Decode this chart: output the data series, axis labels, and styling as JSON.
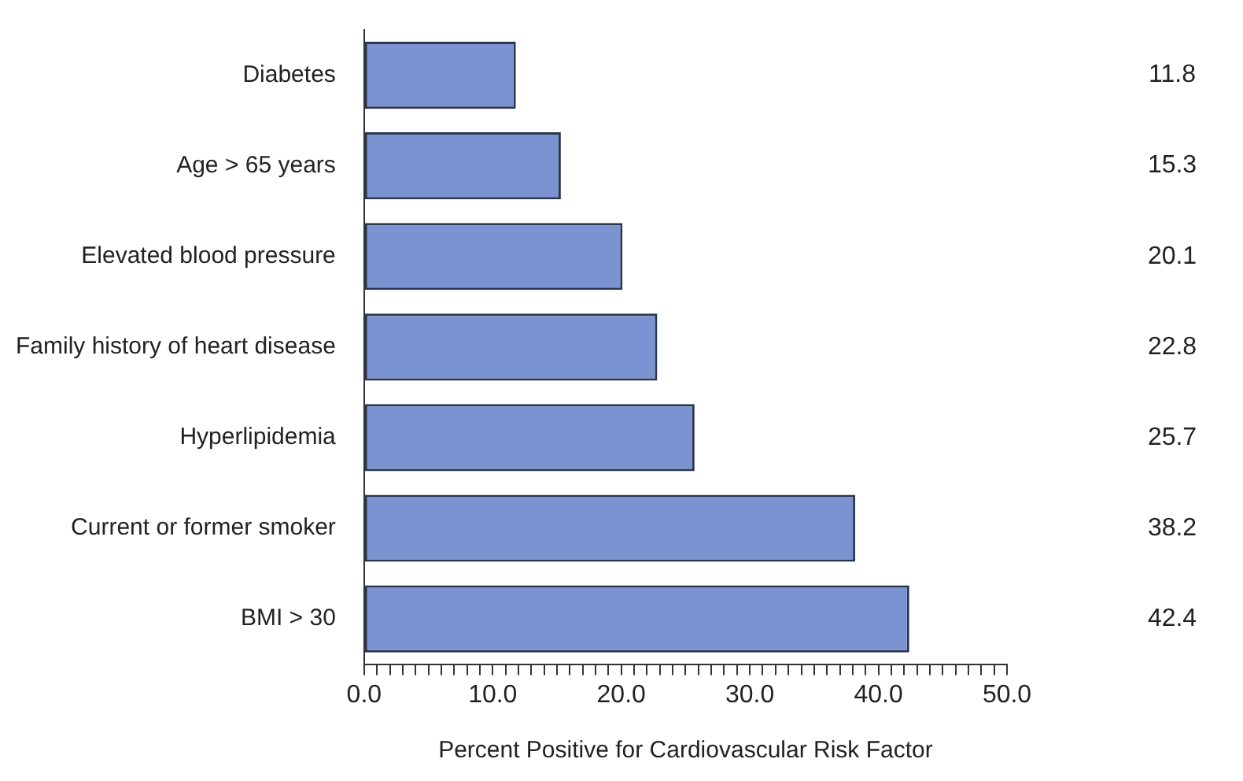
{
  "chart_data": {
    "type": "bar",
    "orientation": "horizontal",
    "xlabel": "Percent Positive for Cardiovascular Risk Factor",
    "categories": [
      "Diabetes",
      "Age > 65 years",
      "Elevated blood pressure",
      "Family history of heart disease",
      "Hyperlipidemia",
      "Current or former smoker",
      "BMI > 30"
    ],
    "values": [
      11.8,
      15.3,
      20.1,
      22.8,
      25.7,
      38.2,
      42.4
    ],
    "color": "#7b93d0",
    "data_labels": true,
    "grid": false,
    "legend": false,
    "xlim": [
      0,
      50
    ],
    "xticks": [
      {
        "value": 0,
        "label": "0.0"
      },
      {
        "value": 1,
        "label": null
      },
      {
        "value": 2,
        "label": null
      },
      {
        "value": 3,
        "label": null
      },
      {
        "value": 4,
        "label": null
      },
      {
        "value": 5,
        "label": null
      },
      {
        "value": 6,
        "label": null
      },
      {
        "value": 7,
        "label": null
      },
      {
        "value": 8,
        "label": null
      },
      {
        "value": 9,
        "label": null
      },
      {
        "value": 10,
        "label": "10.0"
      },
      {
        "value": 11,
        "label": null
      },
      {
        "value": 12,
        "label": null
      },
      {
        "value": 13,
        "label": null
      },
      {
        "value": 14,
        "label": null
      },
      {
        "value": 15,
        "label": null
      },
      {
        "value": 16,
        "label": null
      },
      {
        "value": 17,
        "label": null
      },
      {
        "value": 18,
        "label": null
      },
      {
        "value": 19,
        "label": null
      },
      {
        "value": 20,
        "label": "20.0"
      },
      {
        "value": 21,
        "label": null
      },
      {
        "value": 22,
        "label": null
      },
      {
        "value": 23,
        "label": null
      },
      {
        "value": 24,
        "label": null
      },
      {
        "value": 25,
        "label": null
      },
      {
        "value": 26,
        "label": null
      },
      {
        "value": 27,
        "label": null
      },
      {
        "value": 28,
        "label": null
      },
      {
        "value": 29,
        "label": null
      },
      {
        "value": 30,
        "label": "30.0"
      },
      {
        "value": 31,
        "label": null
      },
      {
        "value": 32,
        "label": null
      },
      {
        "value": 33,
        "label": null
      },
      {
        "value": 34,
        "label": null
      },
      {
        "value": 35,
        "label": null
      },
      {
        "value": 36,
        "label": null
      },
      {
        "value": 37,
        "label": null
      },
      {
        "value": 38,
        "label": null
      },
      {
        "value": 39,
        "label": null
      },
      {
        "value": 40,
        "label": "40.0"
      },
      {
        "value": 41,
        "label": null
      },
      {
        "value": 42,
        "label": null
      },
      {
        "value": 43,
        "label": null
      },
      {
        "value": 44,
        "label": null
      },
      {
        "value": 45,
        "label": null
      },
      {
        "value": 46,
        "label": null
      },
      {
        "value": 47,
        "label": null
      },
      {
        "value": 48,
        "label": null
      },
      {
        "value": 49,
        "label": null
      },
      {
        "value": 50,
        "label": "50.0"
      }
    ]
  }
}
